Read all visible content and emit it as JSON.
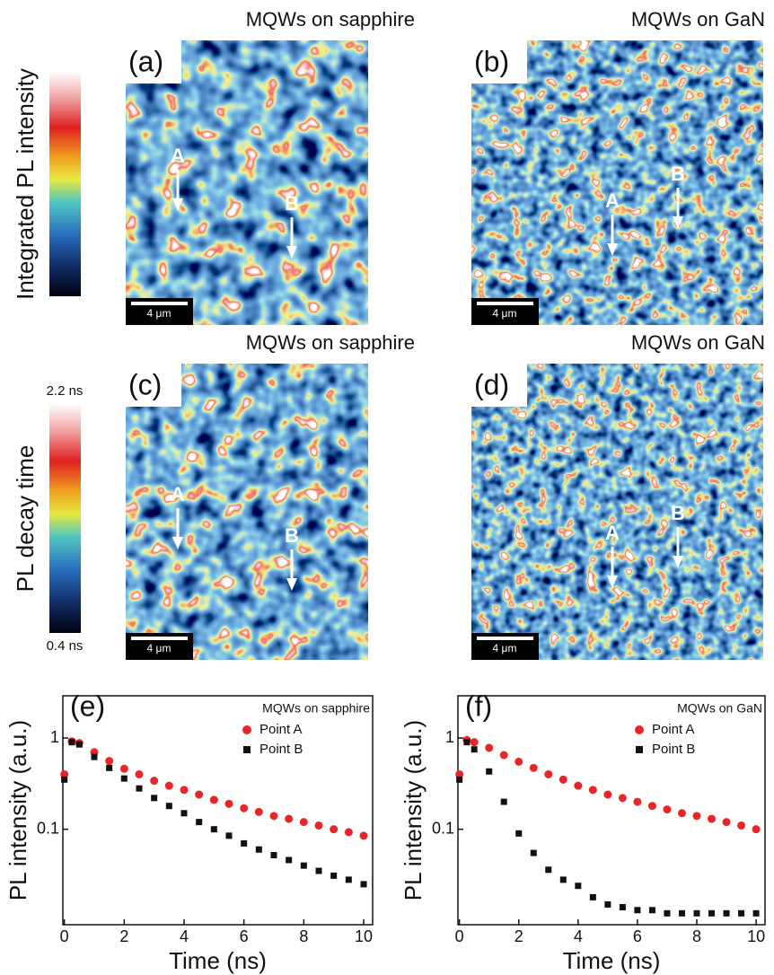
{
  "maps": [
    {
      "label": "(a)",
      "title": "MQWs on sapphire",
      "scale_bar": "4 μm",
      "points": [
        "A",
        "B"
      ]
    },
    {
      "label": "(b)",
      "title": "MQWs on GaN",
      "scale_bar": "4 μm",
      "points": [
        "A",
        "B"
      ]
    },
    {
      "label": "(c)",
      "title": "MQWs on sapphire",
      "scale_bar": "4 μm",
      "points": [
        "A",
        "B"
      ]
    },
    {
      "label": "(d)",
      "title": "MQWs on GaN",
      "scale_bar": "4 μm",
      "points": [
        "A",
        "B"
      ]
    }
  ],
  "colorbars": [
    {
      "label": "Integrated PL intensity"
    },
    {
      "label": "PL decay time",
      "max": "2.2 ns",
      "min": "0.4 ns"
    }
  ],
  "chart_data": [
    {
      "type": "scatter",
      "panel": "(e)",
      "legend_title": "MQWs on sapphire",
      "x_label": "Time (ns)",
      "y_label": "PL intensity (a.u.)",
      "log_y": true,
      "xlim": [
        -0.05,
        10.3
      ],
      "ylim": [
        0.009,
        2.9
      ],
      "xticks": [
        0,
        2,
        4,
        6,
        8,
        10
      ],
      "yticks": [
        1,
        0.1
      ],
      "x": [
        0,
        0.25,
        0.5,
        1,
        1.5,
        2,
        2.5,
        3,
        3.5,
        4,
        4.5,
        5,
        5.5,
        6,
        6.5,
        7,
        7.5,
        8,
        8.5,
        9,
        9.5,
        10
      ],
      "series": [
        {
          "name": "Point A",
          "color": "#e8262a",
          "marker": "circle",
          "values": [
            0.4,
            0.92,
            0.88,
            0.7,
            0.56,
            0.46,
            0.4,
            0.34,
            0.3,
            0.27,
            0.24,
            0.21,
            0.19,
            0.17,
            0.155,
            0.14,
            0.13,
            0.12,
            0.11,
            0.1,
            0.093,
            0.085
          ]
        },
        {
          "name": "Point B",
          "color": "#111111",
          "marker": "square",
          "values": [
            0.35,
            0.9,
            0.85,
            0.62,
            0.47,
            0.36,
            0.28,
            0.22,
            0.18,
            0.15,
            0.12,
            0.1,
            0.085,
            0.07,
            0.06,
            0.052,
            0.046,
            0.04,
            0.035,
            0.031,
            0.028,
            0.025
          ]
        }
      ]
    },
    {
      "type": "scatter",
      "panel": "(f)",
      "legend_title": "MQWs on GaN",
      "x_label": "Time (ns)",
      "y_label": "PL intensity (a.u.)",
      "log_y": true,
      "xlim": [
        -0.05,
        10.3
      ],
      "ylim": [
        0.009,
        2.9
      ],
      "xticks": [
        0,
        2,
        4,
        6,
        8,
        10
      ],
      "yticks": [
        1,
        0.1
      ],
      "x": [
        0,
        0.25,
        0.5,
        1,
        1.5,
        2,
        2.5,
        3,
        3.5,
        4,
        4.5,
        5,
        5.5,
        6,
        6.5,
        7,
        7.5,
        8,
        8.5,
        9,
        9.5,
        10
      ],
      "series": [
        {
          "name": "Point A",
          "color": "#e8262a",
          "marker": "circle",
          "values": [
            0.4,
            0.95,
            0.9,
            0.78,
            0.65,
            0.55,
            0.47,
            0.4,
            0.35,
            0.3,
            0.27,
            0.24,
            0.22,
            0.2,
            0.18,
            0.165,
            0.15,
            0.14,
            0.13,
            0.12,
            0.11,
            0.1
          ]
        },
        {
          "name": "Point B",
          "color": "#111111",
          "marker": "square",
          "values": [
            0.35,
            0.9,
            0.75,
            0.43,
            0.2,
            0.09,
            0.055,
            0.036,
            0.028,
            0.024,
            0.018,
            0.015,
            0.014,
            0.013,
            0.013,
            0.012,
            0.012,
            0.012,
            0.012,
            0.012,
            0.012,
            0.012
          ]
        }
      ]
    }
  ]
}
